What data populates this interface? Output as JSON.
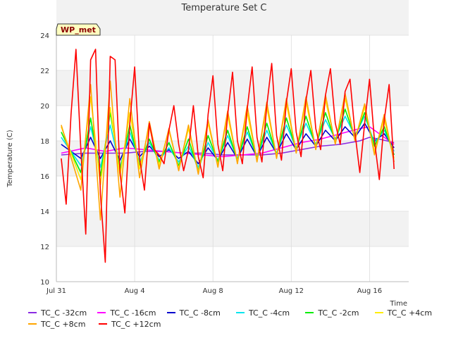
{
  "chart_data": {
    "type": "line",
    "title": "Temperature Set C",
    "xlabel": "Time",
    "ylabel": "Temperature (C)",
    "xlim": [
      "2023-07-31T00:00",
      "2023-08-18T00:00"
    ],
    "ylim": [
      10,
      24
    ],
    "xticks": [
      {
        "date": "2023-07-31",
        "label": "Jul 31"
      },
      {
        "date": "2023-08-04",
        "label": "Aug 4"
      },
      {
        "date": "2023-08-08",
        "label": "Aug 8"
      },
      {
        "date": "2023-08-12",
        "label": "Aug 12"
      },
      {
        "date": "2023-08-16",
        "label": "Aug 16"
      }
    ],
    "yticks": [
      10,
      12,
      14,
      16,
      18,
      20,
      22,
      24
    ],
    "grid": true,
    "background_bands": true,
    "annotation": "WP_met",
    "series": [
      {
        "name": "TC_C -32cm",
        "color": "#8a2be2",
        "x": [
          "2023-07-31T06:00",
          "2023-08-01T12:00",
          "2023-08-02T12:00",
          "2023-08-03T12:00",
          "2023-08-04T12:00",
          "2023-08-05T12:00",
          "2023-08-06T12:00",
          "2023-08-07T12:00",
          "2023-08-08T12:00",
          "2023-08-09T12:00",
          "2023-08-10T12:00",
          "2023-08-11T12:00",
          "2023-08-12T12:00",
          "2023-08-13T12:00",
          "2023-08-14T12:00",
          "2023-08-15T12:00",
          "2023-08-16T00:00",
          "2023-08-16T12:00",
          "2023-08-17T06:00"
        ],
        "y": [
          17.2,
          17.3,
          17.3,
          17.3,
          17.4,
          17.4,
          17.3,
          17.3,
          17.2,
          17.2,
          17.2,
          17.3,
          17.5,
          17.7,
          17.8,
          18.0,
          18.2,
          18.1,
          17.9
        ]
      },
      {
        "name": "TC_C -16cm",
        "color": "#ff00ff",
        "x": [
          "2023-07-31T06:00",
          "2023-08-01T12:00",
          "2023-08-02T12:00",
          "2023-08-03T12:00",
          "2023-08-04T12:00",
          "2023-08-05T12:00",
          "2023-08-06T12:00",
          "2023-08-07T12:00",
          "2023-08-08T12:00",
          "2023-08-09T12:00",
          "2023-08-10T12:00",
          "2023-08-11T12:00",
          "2023-08-12T12:00",
          "2023-08-13T12:00",
          "2023-08-14T12:00",
          "2023-08-15T12:00",
          "2023-08-16T00:00",
          "2023-08-16T12:00",
          "2023-08-17T06:00"
        ],
        "y": [
          17.3,
          17.6,
          17.4,
          17.6,
          17.5,
          17.4,
          17.3,
          17.2,
          17.1,
          17.2,
          17.3,
          17.6,
          17.9,
          18.1,
          18.4,
          18.7,
          18.8,
          18.4,
          17.8
        ]
      },
      {
        "name": "TC_C -8cm",
        "color": "#0000cd",
        "x": [
          "2023-07-31T06:00",
          "2023-08-01T06:00",
          "2023-08-01T18:00",
          "2023-08-02T06:00",
          "2023-08-02T18:00",
          "2023-08-03T06:00",
          "2023-08-03T18:00",
          "2023-08-04T06:00",
          "2023-08-04T18:00",
          "2023-08-05T06:00",
          "2023-08-05T18:00",
          "2023-08-06T06:00",
          "2023-08-06T18:00",
          "2023-08-07T06:00",
          "2023-08-07T18:00",
          "2023-08-08T06:00",
          "2023-08-08T18:00",
          "2023-08-09T06:00",
          "2023-08-09T18:00",
          "2023-08-10T06:00",
          "2023-08-10T18:00",
          "2023-08-11T06:00",
          "2023-08-11T18:00",
          "2023-08-12T06:00",
          "2023-08-12T18:00",
          "2023-08-13T06:00",
          "2023-08-13T18:00",
          "2023-08-14T06:00",
          "2023-08-14T18:00",
          "2023-08-15T06:00",
          "2023-08-15T18:00",
          "2023-08-16T06:00",
          "2023-08-16T18:00",
          "2023-08-17T06:00"
        ],
        "y": [
          17.8,
          17.0,
          18.2,
          17.0,
          18.0,
          16.9,
          18.1,
          17.1,
          17.7,
          17.1,
          17.5,
          17.0,
          17.4,
          16.7,
          17.6,
          16.9,
          17.9,
          17.0,
          18.1,
          17.1,
          18.2,
          17.3,
          18.4,
          17.5,
          18.4,
          17.7,
          18.6,
          18.0,
          18.8,
          18.2,
          19.0,
          18.0,
          18.4,
          17.6
        ]
      },
      {
        "name": "TC_C -4cm",
        "color": "#00e5ee",
        "x": [
          "2023-07-31T06:00",
          "2023-08-01T06:00",
          "2023-08-01T18:00",
          "2023-08-02T06:00",
          "2023-08-02T18:00",
          "2023-08-03T06:00",
          "2023-08-03T18:00",
          "2023-08-04T06:00",
          "2023-08-04T18:00",
          "2023-08-05T06:00",
          "2023-08-05T18:00",
          "2023-08-06T06:00",
          "2023-08-06T18:00",
          "2023-08-07T06:00",
          "2023-08-07T18:00",
          "2023-08-08T06:00",
          "2023-08-08T18:00",
          "2023-08-09T06:00",
          "2023-08-09T18:00",
          "2023-08-10T06:00",
          "2023-08-10T18:00",
          "2023-08-11T06:00",
          "2023-08-11T18:00",
          "2023-08-12T06:00",
          "2023-08-12T18:00",
          "2023-08-13T06:00",
          "2023-08-13T18:00",
          "2023-08-14T06:00",
          "2023-08-14T18:00",
          "2023-08-15T06:00",
          "2023-08-15T18:00",
          "2023-08-16T06:00",
          "2023-08-16T18:00",
          "2023-08-17T06:00"
        ],
        "y": [
          18.2,
          16.6,
          18.8,
          16.5,
          18.9,
          16.5,
          18.5,
          16.8,
          17.9,
          16.9,
          17.6,
          16.8,
          17.7,
          16.5,
          17.9,
          16.9,
          18.3,
          17.0,
          18.5,
          17.1,
          18.6,
          17.3,
          18.9,
          17.6,
          19.0,
          17.8,
          19.2,
          18.1,
          19.4,
          18.3,
          19.4,
          17.9,
          18.6,
          17.4
        ]
      },
      {
        "name": "TC_C -2cm",
        "color": "#00ee00",
        "x": [
          "2023-07-31T06:00",
          "2023-08-01T06:00",
          "2023-08-01T18:00",
          "2023-08-02T06:00",
          "2023-08-02T18:00",
          "2023-08-03T06:00",
          "2023-08-03T18:00",
          "2023-08-04T06:00",
          "2023-08-04T18:00",
          "2023-08-05T06:00",
          "2023-08-05T18:00",
          "2023-08-06T06:00",
          "2023-08-06T18:00",
          "2023-08-07T06:00",
          "2023-08-07T18:00",
          "2023-08-08T06:00",
          "2023-08-08T18:00",
          "2023-08-09T06:00",
          "2023-08-09T18:00",
          "2023-08-10T06:00",
          "2023-08-10T18:00",
          "2023-08-11T06:00",
          "2023-08-11T18:00",
          "2023-08-12T06:00",
          "2023-08-12T18:00",
          "2023-08-13T06:00",
          "2023-08-13T18:00",
          "2023-08-14T06:00",
          "2023-08-14T18:00",
          "2023-08-15T06:00",
          "2023-08-15T18:00",
          "2023-08-16T06:00",
          "2023-08-16T18:00",
          "2023-08-17T06:00"
        ],
        "y": [
          18.5,
          16.2,
          19.3,
          16.0,
          19.6,
          16.3,
          18.9,
          16.6,
          18.1,
          16.8,
          17.9,
          16.6,
          18.1,
          16.3,
          18.3,
          16.8,
          18.6,
          16.9,
          18.8,
          17.0,
          19.0,
          17.2,
          19.3,
          17.5,
          19.4,
          17.7,
          19.6,
          18.0,
          19.8,
          18.2,
          19.6,
          17.7,
          18.8,
          17.2
        ]
      },
      {
        "name": "TC_C +4cm",
        "color": "#ffee00",
        "x": [
          "2023-07-31T06:00",
          "2023-08-01T06:00",
          "2023-08-01T18:00",
          "2023-08-02T06:00",
          "2023-08-02T18:00",
          "2023-08-03T06:00",
          "2023-08-03T18:00",
          "2023-08-04T06:00",
          "2023-08-04T18:00",
          "2023-08-05T06:00",
          "2023-08-05T18:00",
          "2023-08-06T06:00",
          "2023-08-06T18:00",
          "2023-08-07T06:00",
          "2023-08-07T18:00",
          "2023-08-08T06:00",
          "2023-08-08T18:00",
          "2023-08-09T06:00",
          "2023-08-09T18:00",
          "2023-08-10T06:00",
          "2023-08-10T18:00",
          "2023-08-11T06:00",
          "2023-08-11T18:00",
          "2023-08-12T06:00",
          "2023-08-12T18:00",
          "2023-08-13T06:00",
          "2023-08-13T18:00",
          "2023-08-14T06:00",
          "2023-08-14T18:00",
          "2023-08-15T06:00",
          "2023-08-15T18:00",
          "2023-08-16T06:00",
          "2023-08-16T18:00",
          "2023-08-17T06:00"
        ],
        "y": [
          18.8,
          15.8,
          20.5,
          15.5,
          19.9,
          16.0,
          19.6,
          16.4,
          18.8,
          16.6,
          18.6,
          16.4,
          18.7,
          16.2,
          19.0,
          16.6,
          19.4,
          16.8,
          19.6,
          16.9,
          19.9,
          17.1,
          20.1,
          17.4,
          20.2,
          17.6,
          20.3,
          17.9,
          20.4,
          18.1,
          19.9,
          17.4,
          19.2,
          17.0
        ]
      },
      {
        "name": "TC_C +8cm",
        "color": "#ffa500",
        "x": [
          "2023-07-31T06:00",
          "2023-08-01T06:00",
          "2023-08-01T18:00",
          "2023-08-02T06:00",
          "2023-08-02T18:00",
          "2023-08-03T06:00",
          "2023-08-03T18:00",
          "2023-08-04T06:00",
          "2023-08-04T18:00",
          "2023-08-05T06:00",
          "2023-08-05T18:00",
          "2023-08-06T06:00",
          "2023-08-06T18:00",
          "2023-08-07T06:00",
          "2023-08-07T18:00",
          "2023-08-08T06:00",
          "2023-08-08T18:00",
          "2023-08-09T06:00",
          "2023-08-09T18:00",
          "2023-08-10T06:00",
          "2023-08-10T18:00",
          "2023-08-11T06:00",
          "2023-08-11T18:00",
          "2023-08-12T06:00",
          "2023-08-12T18:00",
          "2023-08-13T06:00",
          "2023-08-13T18:00",
          "2023-08-14T06:00",
          "2023-08-14T18:00",
          "2023-08-15T06:00",
          "2023-08-15T18:00",
          "2023-08-16T06:00",
          "2023-08-16T18:00",
          "2023-08-17T06:00"
        ],
        "y": [
          18.9,
          15.2,
          21.2,
          13.5,
          21.4,
          14.8,
          20.4,
          15.9,
          19.1,
          16.4,
          18.7,
          16.3,
          18.9,
          16.1,
          19.2,
          16.5,
          19.7,
          16.7,
          20.0,
          16.8,
          20.2,
          17.0,
          20.4,
          17.3,
          20.5,
          17.5,
          20.6,
          17.8,
          20.7,
          18.0,
          20.1,
          17.2,
          19.5,
          16.8
        ]
      },
      {
        "name": "TC_C +12cm",
        "color": "#ff0000",
        "x": [
          "2023-07-31T06:00",
          "2023-07-31T12:00",
          "2023-07-31T18:00",
          "2023-08-01T00:00",
          "2023-08-01T06:00",
          "2023-08-01T12:00",
          "2023-08-01T18:00",
          "2023-08-02T00:00",
          "2023-08-02T06:00",
          "2023-08-02T12:00",
          "2023-08-02T18:00",
          "2023-08-03T00:00",
          "2023-08-03T06:00",
          "2023-08-03T12:00",
          "2023-08-03T18:00",
          "2023-08-04T00:00",
          "2023-08-04T06:00",
          "2023-08-04T12:00",
          "2023-08-04T18:00",
          "2023-08-05T00:00",
          "2023-08-05T06:00",
          "2023-08-05T12:00",
          "2023-08-05T18:00",
          "2023-08-06T00:00",
          "2023-08-06T06:00",
          "2023-08-06T12:00",
          "2023-08-06T18:00",
          "2023-08-07T00:00",
          "2023-08-07T06:00",
          "2023-08-07T12:00",
          "2023-08-07T18:00",
          "2023-08-08T00:00",
          "2023-08-08T06:00",
          "2023-08-08T12:00",
          "2023-08-08T18:00",
          "2023-08-09T00:00",
          "2023-08-09T06:00",
          "2023-08-09T12:00",
          "2023-08-09T18:00",
          "2023-08-10T00:00",
          "2023-08-10T06:00",
          "2023-08-10T12:00",
          "2023-08-10T18:00",
          "2023-08-11T00:00",
          "2023-08-11T06:00",
          "2023-08-11T12:00",
          "2023-08-11T18:00",
          "2023-08-12T00:00",
          "2023-08-12T06:00",
          "2023-08-12T12:00",
          "2023-08-12T18:00",
          "2023-08-13T00:00",
          "2023-08-13T06:00",
          "2023-08-13T12:00",
          "2023-08-13T18:00",
          "2023-08-14T00:00",
          "2023-08-14T06:00",
          "2023-08-14T12:00",
          "2023-08-14T18:00",
          "2023-08-15T00:00",
          "2023-08-15T06:00",
          "2023-08-15T12:00",
          "2023-08-15T18:00",
          "2023-08-16T00:00",
          "2023-08-16T06:00",
          "2023-08-16T12:00",
          "2023-08-16T18:00",
          "2023-08-17T00:00",
          "2023-08-17T06:00"
        ],
        "y": [
          17.0,
          14.4,
          19.5,
          23.2,
          17.5,
          12.7,
          22.6,
          23.2,
          15.0,
          11.1,
          22.8,
          22.6,
          16.2,
          13.9,
          19.0,
          22.2,
          17.0,
          15.2,
          19.0,
          17.5,
          17.2,
          16.7,
          18.6,
          20.0,
          17.8,
          16.3,
          17.5,
          20.0,
          17.1,
          15.9,
          19.5,
          21.7,
          17.8,
          16.3,
          19.5,
          21.9,
          18.0,
          16.7,
          19.8,
          22.2,
          18.2,
          16.8,
          20.0,
          22.4,
          18.3,
          16.9,
          20.2,
          22.1,
          18.5,
          17.1,
          20.3,
          22.0,
          18.7,
          17.5,
          20.6,
          22.1,
          19.0,
          17.8,
          20.8,
          21.5,
          18.5,
          16.2,
          19.0,
          21.5,
          18.0,
          15.8,
          19.2,
          21.2,
          16.4
        ]
      }
    ]
  }
}
